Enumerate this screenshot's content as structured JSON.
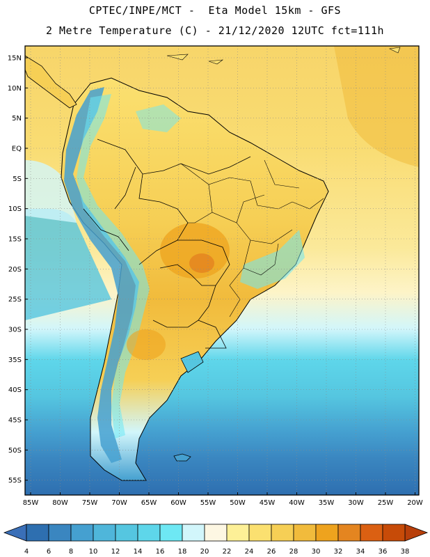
{
  "header": {
    "title_line1": "CPTEC/INPE/MCT -  Eta Model 15km - GFS",
    "title_line2": "2 Metre Temperature (C) - 21/12/2020 12UTC fct=111h"
  },
  "map": {
    "lat_labels": [
      "15N",
      "10N",
      "5N",
      "EQ",
      "5S",
      "10S",
      "15S",
      "20S",
      "25S",
      "30S",
      "35S",
      "40S",
      "45S",
      "50S",
      "55S"
    ],
    "lon_labels": [
      "85W",
      "80W",
      "75W",
      "70W",
      "65W",
      "60W",
      "55W",
      "50W",
      "45W",
      "40W",
      "35W",
      "30W",
      "25W",
      "20W"
    ],
    "lat_values": [
      15,
      10,
      5,
      0,
      -5,
      -10,
      -15,
      -20,
      -25,
      -30,
      -35,
      -40,
      -45,
      -50,
      -55
    ],
    "lon_values": [
      -85,
      -80,
      -75,
      -70,
      -65,
      -60,
      -55,
      -50,
      -45,
      -40,
      -35,
      -30,
      -25,
      -20
    ]
  },
  "colorbar": {
    "labels": [
      "4",
      "6",
      "8",
      "10",
      "12",
      "14",
      "16",
      "18",
      "20",
      "22",
      "24",
      "26",
      "28",
      "30",
      "32",
      "34",
      "36",
      "38"
    ],
    "colors": [
      "#2e6fb0",
      "#3a86c0",
      "#45a0d0",
      "#4fb6da",
      "#55c6e0",
      "#5ed6ea",
      "#6ee8f4",
      "#d2f6fb",
      "#fdf7e3",
      "#fdf097",
      "#fbe070",
      "#f6cf55",
      "#f1bb3c",
      "#eea31e",
      "#e48520",
      "#db6012",
      "#c74b08"
    ],
    "under_color": "#3a6fb8",
    "over_color": "#b83f0a"
  }
}
